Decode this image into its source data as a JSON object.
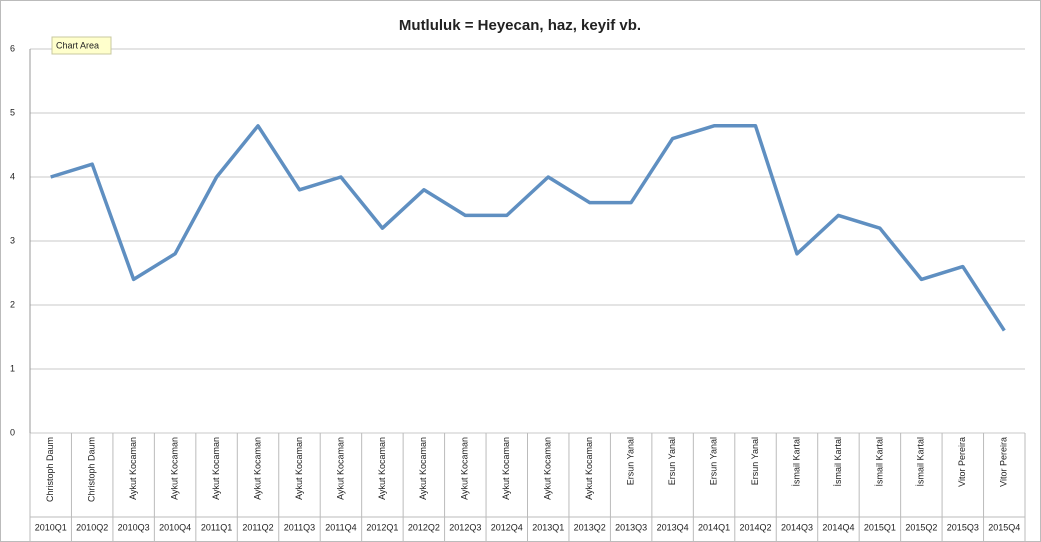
{
  "chart_data": {
    "type": "line",
    "title": "Mutluluk = Heyecan, haz, keyif vb.",
    "tooltip": "Chart Area",
    "categories": [
      "2010Q1",
      "2010Q2",
      "2010Q3",
      "2010Q4",
      "2011Q1",
      "2011Q2",
      "2011Q3",
      "2011Q4",
      "2012Q1",
      "2012Q2",
      "2012Q3",
      "2012Q4",
      "2013Q1",
      "2013Q2",
      "2013Q3",
      "2013Q4",
      "2014Q1",
      "2014Q2",
      "2014Q3",
      "2014Q4",
      "2015Q1",
      "2015Q2",
      "2015Q3",
      "2015Q4"
    ],
    "coaches": [
      "Christoph  Daum",
      "Christoph Daum",
      "Aykut Kocaman",
      "Aykut Kocaman",
      "Aykut Kocaman",
      "Aykut Kocaman",
      "Aykut Kocaman",
      "Aykut Kocaman",
      "Aykut Kocaman",
      "Aykut Kocaman",
      "Aykut Kocaman",
      "Aykut Kocaman",
      "Aykut Kocaman",
      "Aykut Kocaman",
      "Ersun Yanal",
      "Ersun Yanal",
      "Ersun Yanal",
      "Ersun Yanal",
      "İsmail Kartal",
      "İsmail Kartal",
      "İsmail Kartal",
      "İsmail Kartal",
      "Vitor Pereira",
      "Vitor Pereira"
    ],
    "values": [
      4.0,
      4.2,
      2.4,
      2.8,
      4.0,
      4.8,
      3.8,
      4.0,
      3.2,
      3.8,
      3.4,
      3.4,
      4.0,
      3.6,
      3.6,
      4.6,
      4.8,
      4.8,
      2.8,
      3.4,
      3.2,
      2.4,
      2.6,
      1.6
    ],
    "color": "#5f8fc1",
    "ylim": [
      0,
      6
    ],
    "yticks": [
      0,
      1,
      2,
      3,
      4,
      5,
      6
    ],
    "grid": true
  }
}
